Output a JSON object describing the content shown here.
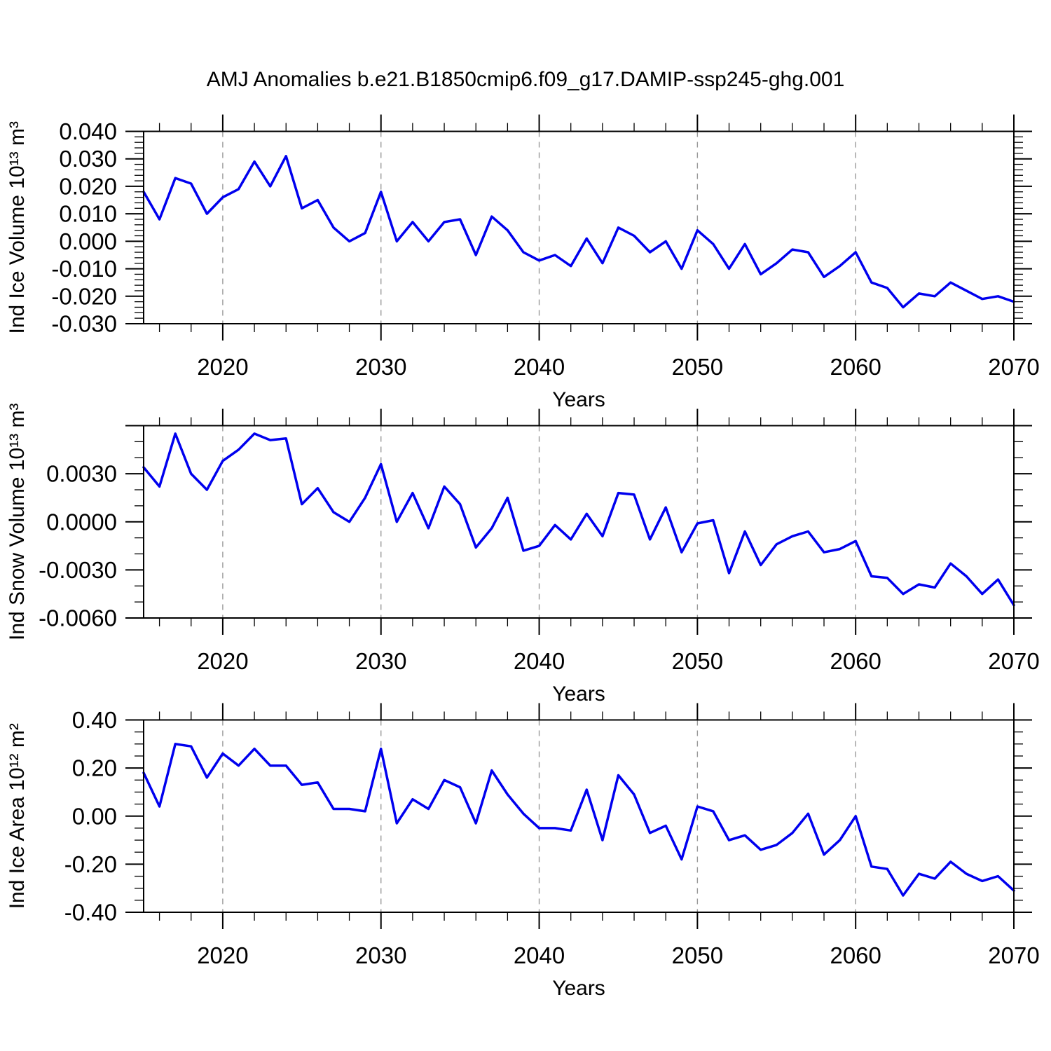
{
  "title": "AMJ Anomalies b.e21.B1850cmip6.f09_g17.DAMIP-ssp245-ghg.001",
  "chart_data": [
    {
      "type": "line",
      "name": "ind-ice-volume",
      "title": "",
      "ylabel": "Ind Ice Volume 10¹³ m³",
      "xlabel": "Years",
      "line_color": "#0000ee",
      "grid_color": "#999999",
      "legend": "none",
      "grid_x": [
        2020,
        2030,
        2040,
        2050,
        2060
      ],
      "xlim": [
        2015,
        2070
      ],
      "ylim": [
        -0.03,
        0.04
      ],
      "ymajor_step": 0.01,
      "yminor_step": 0.002,
      "ytick_decimals": 3,
      "yticks_labeled": [
        0.04,
        0.03,
        0.02,
        0.01,
        0.0,
        -0.01,
        -0.02,
        -0.03
      ],
      "xticks_major": [
        2020,
        2030,
        2040,
        2050,
        2060,
        2070
      ],
      "xminor_step": 2,
      "x": [
        2015,
        2016,
        2017,
        2018,
        2019,
        2020,
        2021,
        2022,
        2023,
        2024,
        2025,
        2026,
        2027,
        2028,
        2029,
        2030,
        2031,
        2032,
        2033,
        2034,
        2035,
        2036,
        2037,
        2038,
        2039,
        2040,
        2041,
        2042,
        2043,
        2044,
        2045,
        2046,
        2047,
        2048,
        2049,
        2050,
        2051,
        2052,
        2053,
        2054,
        2055,
        2056,
        2057,
        2058,
        2059,
        2060,
        2061,
        2062,
        2063,
        2064,
        2065,
        2066,
        2067,
        2068,
        2069,
        2070
      ],
      "values": [
        0.018,
        0.008,
        0.023,
        0.021,
        0.01,
        0.016,
        0.019,
        0.029,
        0.02,
        0.031,
        0.012,
        0.015,
        0.005,
        0.0,
        0.003,
        0.018,
        0.0,
        0.007,
        0.0,
        0.007,
        0.008,
        -0.005,
        0.009,
        0.004,
        -0.004,
        -0.007,
        -0.005,
        -0.009,
        0.001,
        -0.008,
        0.005,
        0.002,
        -0.004,
        0.0,
        -0.01,
        0.004,
        -0.001,
        -0.01,
        -0.001,
        -0.012,
        -0.008,
        -0.003,
        -0.004,
        -0.013,
        -0.009,
        -0.004,
        -0.015,
        -0.017,
        -0.024,
        -0.019,
        -0.02,
        -0.015,
        -0.018,
        -0.021,
        -0.02,
        -0.022
      ]
    },
    {
      "type": "line",
      "name": "ind-snow-volume",
      "title": "",
      "ylabel": "Ind Snow Volume 10¹³ m³",
      "xlabel": "Years",
      "line_color": "#0000ee",
      "grid_color": "#999999",
      "legend": "none",
      "grid_x": [
        2020,
        2030,
        2040,
        2050,
        2060
      ],
      "xlim": [
        2015,
        2070
      ],
      "ylim": [
        -0.006,
        0.006
      ],
      "ymajor_step": 0.003,
      "yminor_step": 0.001,
      "ytick_decimals": 4,
      "yticks_labeled": [
        0.003,
        0.0,
        -0.003,
        -0.006
      ],
      "xticks_major": [
        2020,
        2030,
        2040,
        2050,
        2060,
        2070
      ],
      "xminor_step": 2,
      "x": [
        2015,
        2016,
        2017,
        2018,
        2019,
        2020,
        2021,
        2022,
        2023,
        2024,
        2025,
        2026,
        2027,
        2028,
        2029,
        2030,
        2031,
        2032,
        2033,
        2034,
        2035,
        2036,
        2037,
        2038,
        2039,
        2040,
        2041,
        2042,
        2043,
        2044,
        2045,
        2046,
        2047,
        2048,
        2049,
        2050,
        2051,
        2052,
        2053,
        2054,
        2055,
        2056,
        2057,
        2058,
        2059,
        2060,
        2061,
        2062,
        2063,
        2064,
        2065,
        2066,
        2067,
        2068,
        2069,
        2070
      ],
      "values": [
        0.0034,
        0.0022,
        0.0055,
        0.003,
        0.002,
        0.0038,
        0.0045,
        0.0055,
        0.0051,
        0.0052,
        0.0011,
        0.0021,
        0.0006,
        0.0,
        0.0015,
        0.0036,
        0.0,
        0.0018,
        -0.0004,
        0.0022,
        0.0011,
        -0.0016,
        -0.0004,
        0.0015,
        -0.0018,
        -0.0015,
        -0.0002,
        -0.0011,
        0.0005,
        -0.0009,
        0.0018,
        0.0017,
        -0.0011,
        0.0009,
        -0.0019,
        -0.0001,
        0.0001,
        -0.0032,
        -0.0006,
        -0.0027,
        -0.0014,
        -0.0009,
        -0.0006,
        -0.0019,
        -0.0017,
        -0.0012,
        -0.0034,
        -0.0035,
        -0.0045,
        -0.0039,
        -0.0041,
        -0.0026,
        -0.0034,
        -0.0045,
        -0.0036,
        -0.0052
      ]
    },
    {
      "type": "line",
      "name": "ind-ice-area",
      "title": "",
      "ylabel": "Ind Ice Area 10¹² m²",
      "xlabel": "Years",
      "line_color": "#0000ee",
      "grid_color": "#999999",
      "legend": "none",
      "grid_x": [
        2020,
        2030,
        2040,
        2050,
        2060
      ],
      "xlim": [
        2015,
        2070
      ],
      "ylim": [
        -0.4,
        0.4
      ],
      "ymajor_step": 0.2,
      "yminor_step": 0.05,
      "ytick_decimals": 2,
      "yticks_labeled": [
        0.4,
        0.2,
        0.0,
        -0.2,
        -0.4
      ],
      "xticks_major": [
        2020,
        2030,
        2040,
        2050,
        2060,
        2070
      ],
      "xminor_step": 2,
      "x": [
        2015,
        2016,
        2017,
        2018,
        2019,
        2020,
        2021,
        2022,
        2023,
        2024,
        2025,
        2026,
        2027,
        2028,
        2029,
        2030,
        2031,
        2032,
        2033,
        2034,
        2035,
        2036,
        2037,
        2038,
        2039,
        2040,
        2041,
        2042,
        2043,
        2044,
        2045,
        2046,
        2047,
        2048,
        2049,
        2050,
        2051,
        2052,
        2053,
        2054,
        2055,
        2056,
        2057,
        2058,
        2059,
        2060,
        2061,
        2062,
        2063,
        2064,
        2065,
        2066,
        2067,
        2068,
        2069,
        2070
      ],
      "values": [
        0.18,
        0.04,
        0.3,
        0.29,
        0.16,
        0.26,
        0.21,
        0.28,
        0.21,
        0.21,
        0.13,
        0.14,
        0.03,
        0.03,
        0.02,
        0.28,
        -0.03,
        0.07,
        0.03,
        0.15,
        0.12,
        -0.03,
        0.19,
        0.09,
        0.01,
        -0.05,
        -0.05,
        -0.06,
        0.11,
        -0.1,
        0.17,
        0.09,
        -0.07,
        -0.04,
        -0.18,
        0.04,
        0.02,
        -0.1,
        -0.08,
        -0.14,
        -0.12,
        -0.07,
        0.01,
        -0.16,
        -0.1,
        0.0,
        -0.21,
        -0.22,
        -0.33,
        -0.24,
        -0.26,
        -0.19,
        -0.24,
        -0.27,
        -0.25,
        -0.31
      ]
    }
  ]
}
